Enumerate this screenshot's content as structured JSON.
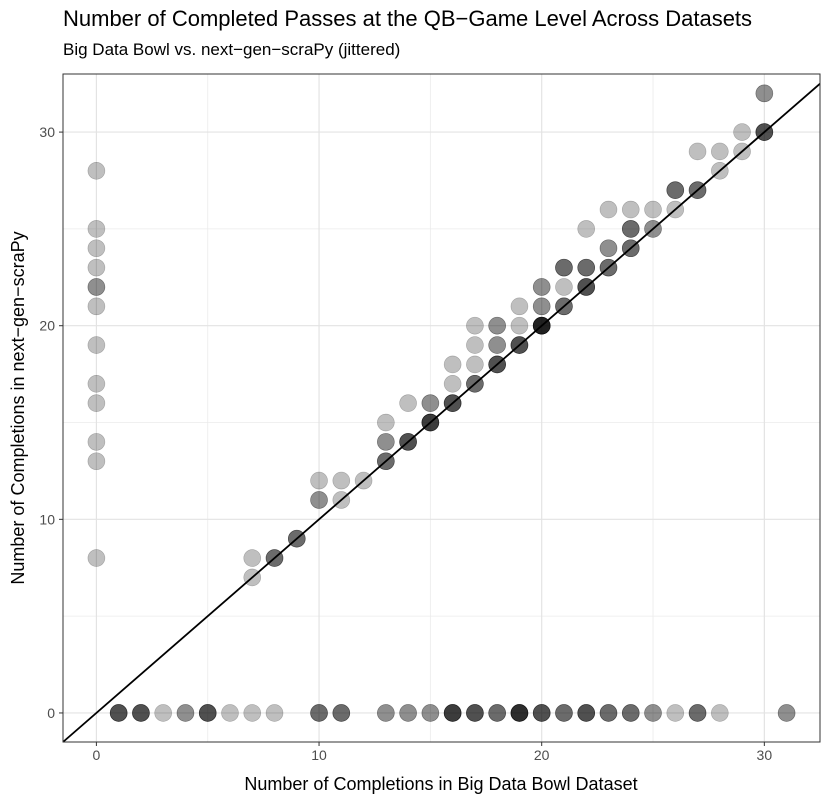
{
  "chart_data": {
    "type": "scatter",
    "title": "Number of Completed Passes at the QB−Game Level Across Datasets",
    "subtitle": "Big Data Bowl vs. next−gen−scraPy (jittered)",
    "xlabel": "Number of Completions in Big Data Bowl Dataset",
    "ylabel": "Number of Completions in next−gen−scraPy",
    "xlim": [
      -1.5,
      32.5
    ],
    "ylim": [
      -1.5,
      33
    ],
    "x_ticks": [
      0,
      10,
      20,
      30
    ],
    "y_ticks": [
      0,
      10,
      20,
      30
    ],
    "x_tick_labels": [
      "0",
      "10",
      "20",
      "30"
    ],
    "y_tick_labels": [
      "0",
      "10",
      "20",
      "30"
    ],
    "grid": true,
    "reference_line": {
      "slope": 1,
      "intercept": 0
    },
    "point_color": "#000000",
    "point_alpha": 0.25,
    "points": [
      {
        "x": 0,
        "y": 8,
        "n": 1
      },
      {
        "x": 0,
        "y": 13,
        "n": 1
      },
      {
        "x": 0,
        "y": 14,
        "n": 1
      },
      {
        "x": 0,
        "y": 16,
        "n": 1
      },
      {
        "x": 0,
        "y": 17,
        "n": 1
      },
      {
        "x": 0,
        "y": 19,
        "n": 1
      },
      {
        "x": 0,
        "y": 21,
        "n": 1
      },
      {
        "x": 0,
        "y": 22,
        "n": 2
      },
      {
        "x": 0,
        "y": 23,
        "n": 1
      },
      {
        "x": 0,
        "y": 24,
        "n": 1
      },
      {
        "x": 0,
        "y": 25,
        "n": 1
      },
      {
        "x": 0,
        "y": 28,
        "n": 1
      },
      {
        "x": 1,
        "y": 0,
        "n": 4
      },
      {
        "x": 2,
        "y": 0,
        "n": 4
      },
      {
        "x": 3,
        "y": 0,
        "n": 1
      },
      {
        "x": 4,
        "y": 0,
        "n": 2
      },
      {
        "x": 5,
        "y": 0,
        "n": 4
      },
      {
        "x": 6,
        "y": 0,
        "n": 1
      },
      {
        "x": 7,
        "y": 0,
        "n": 1
      },
      {
        "x": 8,
        "y": 0,
        "n": 1
      },
      {
        "x": 10,
        "y": 0,
        "n": 3
      },
      {
        "x": 11,
        "y": 0,
        "n": 3
      },
      {
        "x": 13,
        "y": 0,
        "n": 2
      },
      {
        "x": 14,
        "y": 0,
        "n": 2
      },
      {
        "x": 15,
        "y": 0,
        "n": 2
      },
      {
        "x": 16,
        "y": 0,
        "n": 5
      },
      {
        "x": 17,
        "y": 0,
        "n": 4
      },
      {
        "x": 18,
        "y": 0,
        "n": 3
      },
      {
        "x": 19,
        "y": 0,
        "n": 6
      },
      {
        "x": 20,
        "y": 0,
        "n": 4
      },
      {
        "x": 21,
        "y": 0,
        "n": 3
      },
      {
        "x": 22,
        "y": 0,
        "n": 4
      },
      {
        "x": 23,
        "y": 0,
        "n": 3
      },
      {
        "x": 24,
        "y": 0,
        "n": 3
      },
      {
        "x": 25,
        "y": 0,
        "n": 2
      },
      {
        "x": 26,
        "y": 0,
        "n": 1
      },
      {
        "x": 27,
        "y": 0,
        "n": 3
      },
      {
        "x": 28,
        "y": 0,
        "n": 1
      },
      {
        "x": 31,
        "y": 0,
        "n": 2
      },
      {
        "x": 7,
        "y": 7,
        "n": 1
      },
      {
        "x": 7,
        "y": 8,
        "n": 1
      },
      {
        "x": 8,
        "y": 8,
        "n": 3
      },
      {
        "x": 9,
        "y": 9,
        "n": 3
      },
      {
        "x": 10,
        "y": 11,
        "n": 2
      },
      {
        "x": 10,
        "y": 12,
        "n": 1
      },
      {
        "x": 11,
        "y": 11,
        "n": 1
      },
      {
        "x": 11,
        "y": 12,
        "n": 1
      },
      {
        "x": 12,
        "y": 12,
        "n": 1
      },
      {
        "x": 13,
        "y": 13,
        "n": 3
      },
      {
        "x": 13,
        "y": 14,
        "n": 2
      },
      {
        "x": 13,
        "y": 15,
        "n": 1
      },
      {
        "x": 14,
        "y": 14,
        "n": 4
      },
      {
        "x": 14,
        "y": 16,
        "n": 1
      },
      {
        "x": 15,
        "y": 15,
        "n": 5
      },
      {
        "x": 15,
        "y": 16,
        "n": 2
      },
      {
        "x": 16,
        "y": 16,
        "n": 4
      },
      {
        "x": 16,
        "y": 17,
        "n": 1
      },
      {
        "x": 16,
        "y": 18,
        "n": 1
      },
      {
        "x": 17,
        "y": 17,
        "n": 3
      },
      {
        "x": 17,
        "y": 18,
        "n": 1
      },
      {
        "x": 17,
        "y": 19,
        "n": 1
      },
      {
        "x": 17,
        "y": 20,
        "n": 1
      },
      {
        "x": 18,
        "y": 18,
        "n": 4
      },
      {
        "x": 18,
        "y": 19,
        "n": 2
      },
      {
        "x": 18,
        "y": 20,
        "n": 2
      },
      {
        "x": 19,
        "y": 19,
        "n": 4
      },
      {
        "x": 19,
        "y": 20,
        "n": 1
      },
      {
        "x": 19,
        "y": 21,
        "n": 1
      },
      {
        "x": 20,
        "y": 20,
        "n": 7
      },
      {
        "x": 20,
        "y": 21,
        "n": 2
      },
      {
        "x": 20,
        "y": 22,
        "n": 2
      },
      {
        "x": 21,
        "y": 21,
        "n": 3
      },
      {
        "x": 21,
        "y": 22,
        "n": 1
      },
      {
        "x": 21,
        "y": 23,
        "n": 3
      },
      {
        "x": 22,
        "y": 22,
        "n": 4
      },
      {
        "x": 22,
        "y": 23,
        "n": 3
      },
      {
        "x": 22,
        "y": 25,
        "n": 1
      },
      {
        "x": 23,
        "y": 23,
        "n": 3
      },
      {
        "x": 23,
        "y": 24,
        "n": 2
      },
      {
        "x": 23,
        "y": 26,
        "n": 1
      },
      {
        "x": 24,
        "y": 24,
        "n": 3
      },
      {
        "x": 24,
        "y": 25,
        "n": 3
      },
      {
        "x": 24,
        "y": 26,
        "n": 1
      },
      {
        "x": 25,
        "y": 25,
        "n": 2
      },
      {
        "x": 25,
        "y": 26,
        "n": 1
      },
      {
        "x": 26,
        "y": 26,
        "n": 1
      },
      {
        "x": 26,
        "y": 27,
        "n": 3
      },
      {
        "x": 27,
        "y": 27,
        "n": 3
      },
      {
        "x": 27,
        "y": 29,
        "n": 1
      },
      {
        "x": 28,
        "y": 28,
        "n": 1
      },
      {
        "x": 28,
        "y": 29,
        "n": 1
      },
      {
        "x": 29,
        "y": 29,
        "n": 1
      },
      {
        "x": 29,
        "y": 30,
        "n": 1
      },
      {
        "x": 30,
        "y": 30,
        "n": 4
      },
      {
        "x": 30,
        "y": 32,
        "n": 2
      }
    ]
  }
}
